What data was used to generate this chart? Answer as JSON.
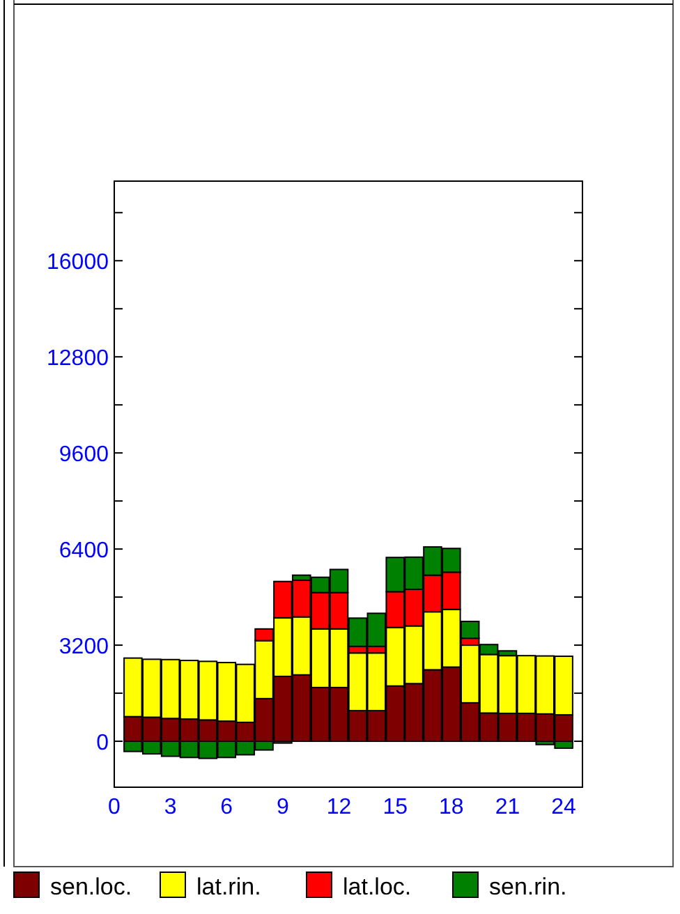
{
  "chart_data": {
    "type": "bar",
    "stacked": true,
    "x": [
      1,
      2,
      3,
      4,
      5,
      6,
      7,
      8,
      9,
      10,
      11,
      12,
      13,
      14,
      15,
      16,
      17,
      18,
      19,
      20,
      21,
      22,
      23,
      24
    ],
    "series": [
      {
        "name": "sen.loc.",
        "color": "#7f0000",
        "values": [
          820,
          800,
          760,
          740,
          710,
          670,
          630,
          1420,
          2160,
          2210,
          1790,
          1790,
          1020,
          1020,
          1840,
          1920,
          2380,
          2470,
          1280,
          940,
          930,
          930,
          910,
          880
        ]
      },
      {
        "name": "lat.rin.",
        "color": "#ffff00",
        "values": [
          1950,
          1930,
          1960,
          1950,
          1950,
          1950,
          1930,
          1930,
          1950,
          1930,
          1950,
          1950,
          1920,
          1920,
          1950,
          1920,
          1930,
          1920,
          1920,
          1950,
          1920,
          1920,
          1930,
          1950
        ]
      },
      {
        "name": "lat.loc.",
        "color": "#ff0000",
        "values": [
          0,
          0,
          0,
          0,
          0,
          0,
          0,
          390,
          1210,
          1220,
          1210,
          1210,
          220,
          220,
          1190,
          1220,
          1220,
          1240,
          230,
          0,
          0,
          0,
          0,
          0
        ]
      },
      {
        "name": "sen.rin.",
        "color": "#008000",
        "values": [
          -340,
          -420,
          -500,
          -540,
          -570,
          -540,
          -450,
          -290,
          -60,
          170,
          510,
          770,
          940,
          1100,
          1140,
          1070,
          940,
          790,
          560,
          330,
          160,
          0,
          -110,
          -230
        ]
      }
    ],
    "xlim": [
      0,
      25
    ],
    "xticks": [
      0,
      3,
      6,
      9,
      12,
      15,
      18,
      21,
      24
    ],
    "ylim": [
      -1530,
      18650
    ],
    "yticks": [
      0,
      {
        "value": 1600,
        "label": null
      },
      3200,
      {
        "value": 4800,
        "label": null
      },
      6400,
      {
        "value": 8000,
        "label": null
      },
      9600,
      {
        "value": 11200,
        "label": null
      },
      12800,
      {
        "value": 14400,
        "label": null
      },
      16000,
      {
        "value": 17600,
        "label": null
      }
    ],
    "legend": "bottom",
    "grid": false
  }
}
